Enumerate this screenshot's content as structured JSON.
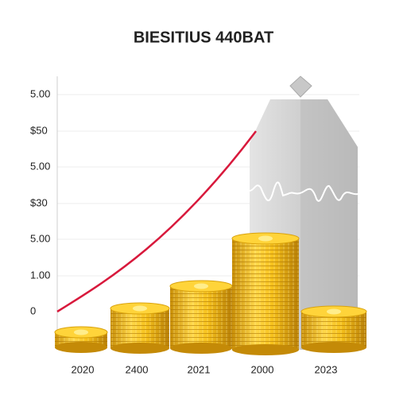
{
  "title": "BIESITIUS 440BAT",
  "y_labels": [
    "5.00",
    "$50",
    "5.00",
    "$30",
    "5.00",
    "1.00",
    "0"
  ],
  "x_labels": [
    "2020",
    "2400",
    "2021",
    "2000",
    "2023"
  ]
}
